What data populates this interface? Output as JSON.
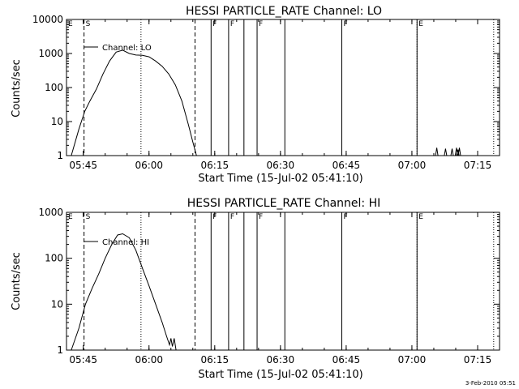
{
  "footer_date": "3-Feb-2010 05:51",
  "chart_data": [
    {
      "type": "line",
      "title": "HESSI PARTICLE_RATE Channel: LO",
      "xlabel": "Start Time (15-Jul-02 05:41:10)",
      "ylabel": "Counts/sec",
      "yscale": "log",
      "ylim": [
        1,
        10000
      ],
      "xlim": [
        "05:41:10",
        "07:20:00"
      ],
      "grid": false,
      "legend": {
        "label": "Channel: LO",
        "placement": "top-left"
      },
      "x_ticks": [
        "05:45",
        "06:00",
        "06:15",
        "06:30",
        "06:45",
        "07:00",
        "07:15"
      ],
      "y_ticks": [
        "1",
        "10",
        "100",
        "1000",
        "10000"
      ],
      "series": [
        {
          "name": "Channel: LO",
          "x": [
            "05:42:15",
            "05:44:00",
            "05:45:20",
            "05:46:30",
            "05:48:00",
            "05:49:30",
            "05:51:00",
            "05:52:30",
            "05:54:00",
            "05:55:30",
            "05:57:00",
            "05:58:30",
            "06:00:00",
            "06:01:30",
            "06:03:00",
            "06:04:30",
            "06:06:00",
            "06:07:30",
            "06:09:00",
            "06:10:00",
            "06:10:50"
          ],
          "y": [
            1,
            6,
            20,
            40,
            90,
            250,
            600,
            1100,
            1250,
            1000,
            900,
            880,
            800,
            600,
            420,
            250,
            120,
            40,
            8,
            2.5,
            1
          ]
        },
        {
          "name": "",
          "x": [
            "07:05:40",
            "07:07:40",
            "07:09:10",
            "07:10:10",
            "07:10:30",
            "07:10:50"
          ],
          "y": [
            1.7,
            1.6,
            1.6,
            1.7,
            1.5,
            1.7
          ]
        }
      ],
      "markers": [
        {
          "label": "E",
          "time": "05:41:10",
          "style": "solid"
        },
        {
          "label": "S",
          "time": "05:45:10",
          "style": "dashed"
        },
        {
          "label": "",
          "time": "05:58:10",
          "style": "dotted"
        },
        {
          "label": "",
          "time": "06:10:30",
          "style": "dashed"
        },
        {
          "label": "F",
          "time": "06:14:10",
          "style": "solid"
        },
        {
          "label": "F",
          "time": "06:18:10",
          "style": "solid"
        },
        {
          "label": "",
          "time": "06:21:40",
          "style": "solid"
        },
        {
          "label": "F",
          "time": "06:24:40",
          "style": "solid"
        },
        {
          "label": "",
          "time": "06:31:00",
          "style": "solid"
        },
        {
          "label": "F",
          "time": "06:44:00",
          "style": "solid"
        },
        {
          "label": "E",
          "time": "07:01:10",
          "style": "solid"
        },
        {
          "label": "",
          "time": "07:01:10",
          "style": "dotted"
        },
        {
          "label": "",
          "time": "07:18:40",
          "style": "dotted"
        }
      ]
    },
    {
      "type": "line",
      "title": "HESSI PARTICLE_RATE Channel: HI",
      "xlabel": "Start Time (15-Jul-02 05:41:10)",
      "ylabel": "Counts/sec",
      "yscale": "log",
      "ylim": [
        1,
        1000
      ],
      "xlim": [
        "05:41:10",
        "07:20:00"
      ],
      "grid": false,
      "legend": {
        "label": "Channel: HI",
        "placement": "top-left"
      },
      "x_ticks": [
        "05:45",
        "06:00",
        "06:15",
        "06:30",
        "06:45",
        "07:00",
        "07:15"
      ],
      "y_ticks": [
        "1",
        "10",
        "100",
        "1000"
      ],
      "series": [
        {
          "name": "Channel: HI",
          "x": [
            "05:42:15",
            "05:44:00",
            "05:45:30",
            "05:47:00",
            "05:48:30",
            "05:50:00",
            "05:51:30",
            "05:52:50",
            "05:54:00",
            "05:55:30",
            "05:57:00",
            "05:58:30",
            "06:00:00",
            "06:01:30",
            "06:03:00",
            "06:04:00",
            "06:04:40",
            "06:05:00",
            "06:05:20",
            "06:05:45",
            "06:06:10"
          ],
          "y": [
            1,
            3,
            10,
            22,
            45,
            100,
            200,
            320,
            340,
            280,
            150,
            60,
            25,
            10,
            4,
            2,
            1.3,
            1.8,
            1.2,
            1.8,
            1
          ]
        }
      ],
      "markers": [
        {
          "label": "E",
          "time": "05:41:10",
          "style": "solid"
        },
        {
          "label": "S",
          "time": "05:45:10",
          "style": "dashed"
        },
        {
          "label": "",
          "time": "05:58:10",
          "style": "dotted"
        },
        {
          "label": "",
          "time": "06:10:30",
          "style": "dashed"
        },
        {
          "label": "F",
          "time": "06:14:10",
          "style": "solid"
        },
        {
          "label": "F",
          "time": "06:18:10",
          "style": "solid"
        },
        {
          "label": "",
          "time": "06:21:40",
          "style": "solid"
        },
        {
          "label": "F",
          "time": "06:24:40",
          "style": "solid"
        },
        {
          "label": "",
          "time": "06:31:00",
          "style": "solid"
        },
        {
          "label": "F",
          "time": "06:44:00",
          "style": "solid"
        },
        {
          "label": "E",
          "time": "07:01:10",
          "style": "solid"
        },
        {
          "label": "",
          "time": "07:01:10",
          "style": "dotted"
        },
        {
          "label": "",
          "time": "07:18:40",
          "style": "dotted"
        }
      ]
    }
  ]
}
